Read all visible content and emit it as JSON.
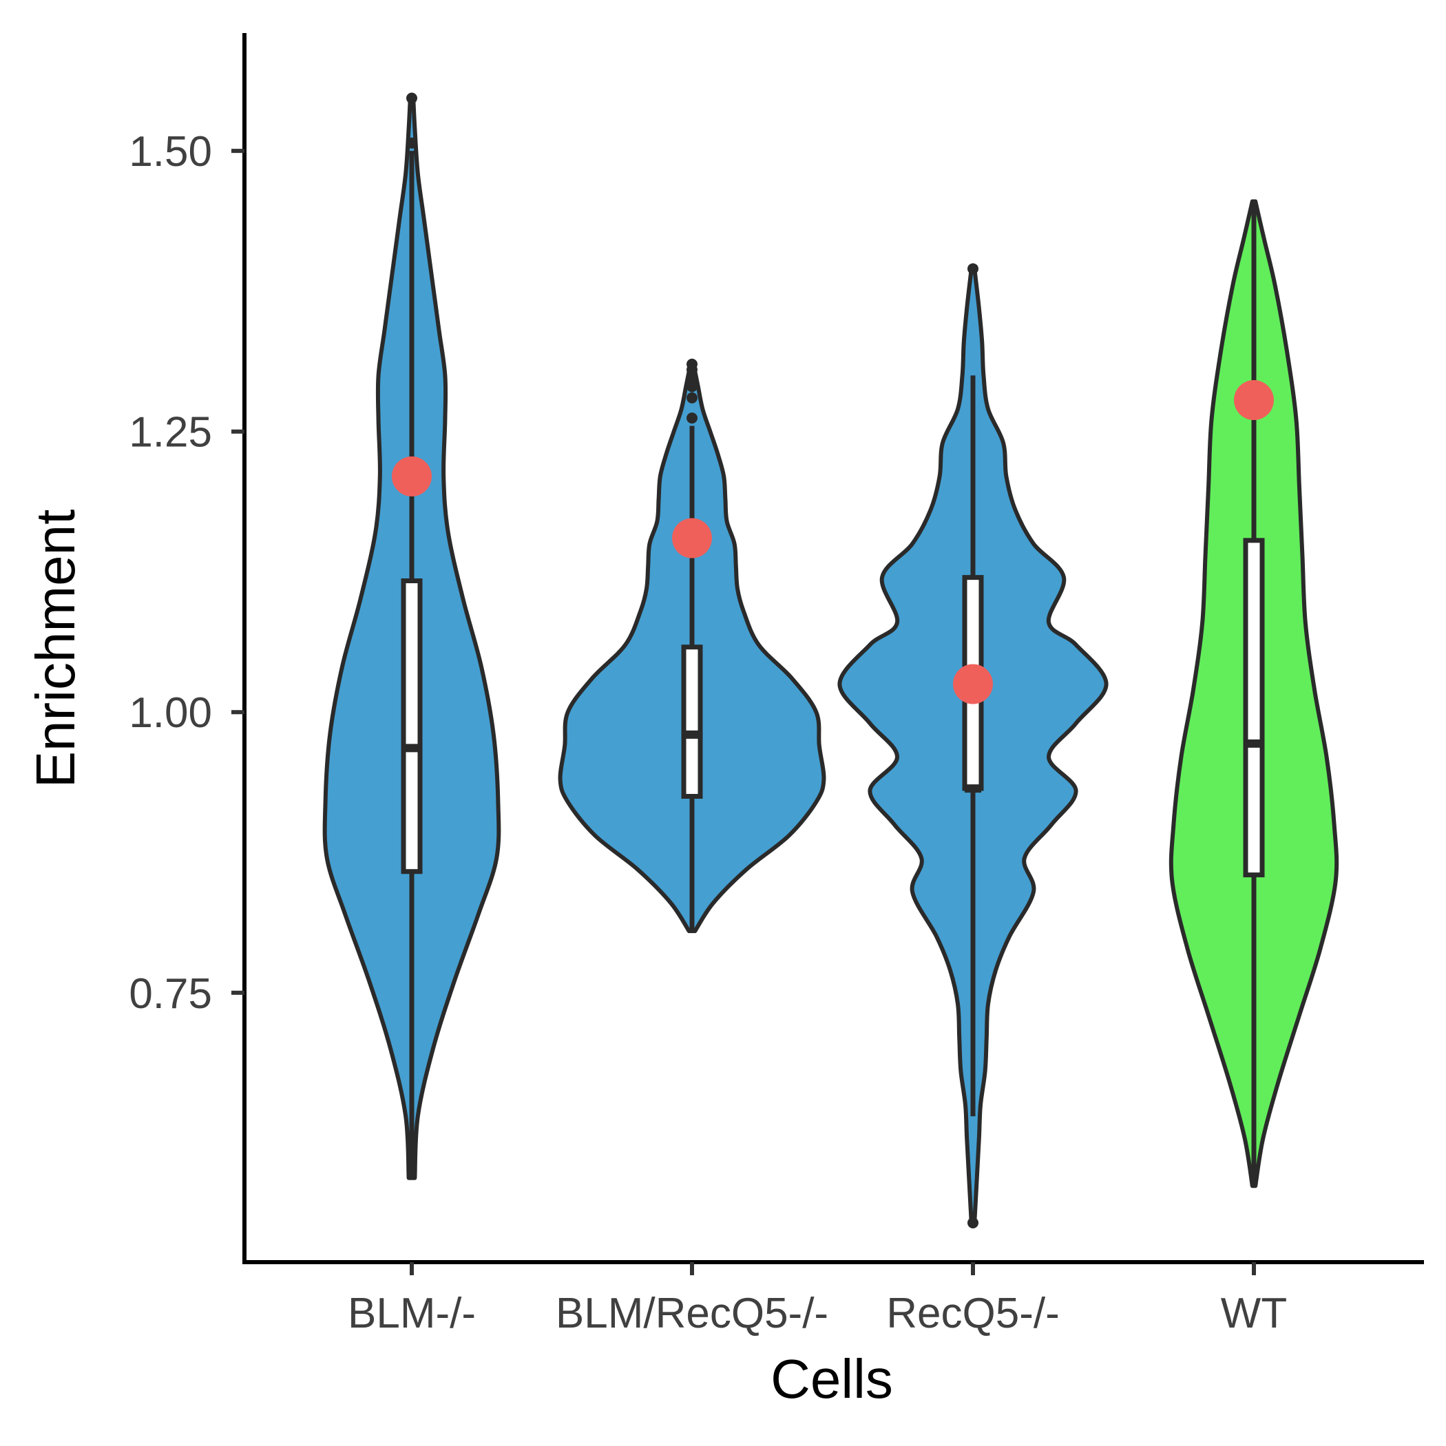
{
  "chart_data": {
    "type": "violin",
    "title": "",
    "xlabel": "Cells",
    "ylabel": "Enrichment",
    "ylim": [
      0.51,
      1.605
    ],
    "yticks": [
      0.75,
      1.0,
      1.25,
      1.5
    ],
    "ytick_labels": [
      "0.75",
      "1.00",
      "1.25",
      "1.50"
    ],
    "categories": [
      "BLM-/-",
      "BLM/RecQ5-/-",
      "RecQ5-/-",
      "WT"
    ],
    "grid": false,
    "legend": "none",
    "colors": {
      "BLM-/-": "#459fd1",
      "BLM/RecQ5-/-": "#459fd1",
      "RecQ5-/-": "#459fd1",
      "WT": "#62ed5b",
      "mean": "#f0605b",
      "outline": "#2a2a2a"
    },
    "groups": [
      {
        "name": "BLM-/-",
        "min": 0.585,
        "max": 1.547,
        "q1": 0.858,
        "median": 0.968,
        "q3": 1.117,
        "whisker_low": 0.585,
        "whisker_high": 1.5,
        "mean": 1.21,
        "outliers": [
          1.507,
          1.547
        ],
        "density": [
          [
            0.585,
            0.01
          ],
          [
            0.64,
            0.02
          ],
          [
            0.7,
            0.07
          ],
          [
            0.76,
            0.14
          ],
          [
            0.82,
            0.22
          ],
          [
            0.87,
            0.28
          ],
          [
            0.92,
            0.285
          ],
          [
            0.98,
            0.27
          ],
          [
            1.04,
            0.23
          ],
          [
            1.1,
            0.17
          ],
          [
            1.16,
            0.12
          ],
          [
            1.21,
            0.105
          ],
          [
            1.26,
            0.11
          ],
          [
            1.3,
            0.11
          ],
          [
            1.34,
            0.09
          ],
          [
            1.39,
            0.065
          ],
          [
            1.44,
            0.04
          ],
          [
            1.48,
            0.02
          ],
          [
            1.52,
            0.01
          ],
          [
            1.547,
            0.005
          ]
        ]
      },
      {
        "name": "BLM/RecQ5-/-",
        "min": 0.805,
        "max": 1.31,
        "q1": 0.925,
        "median": 0.98,
        "q3": 1.058,
        "whisker_low": 0.805,
        "whisker_high": 1.255,
        "mean": 1.155,
        "outliers": [
          1.262,
          1.28,
          1.29,
          1.298,
          1.305,
          1.31
        ],
        "density": [
          [
            0.805,
            0.01
          ],
          [
            0.83,
            0.07
          ],
          [
            0.86,
            0.18
          ],
          [
            0.89,
            0.32
          ],
          [
            0.92,
            0.41
          ],
          [
            0.94,
            0.435
          ],
          [
            0.97,
            0.42
          ],
          [
            1.0,
            0.41
          ],
          [
            1.03,
            0.33
          ],
          [
            1.06,
            0.22
          ],
          [
            1.09,
            0.17
          ],
          [
            1.11,
            0.15
          ],
          [
            1.13,
            0.145
          ],
          [
            1.15,
            0.14
          ],
          [
            1.17,
            0.115
          ],
          [
            1.19,
            0.11
          ],
          [
            1.21,
            0.105
          ],
          [
            1.23,
            0.085
          ],
          [
            1.25,
            0.06
          ],
          [
            1.27,
            0.035
          ],
          [
            1.29,
            0.02
          ],
          [
            1.31,
            0.005
          ]
        ]
      },
      {
        "name": "RecQ5-/-",
        "min": 0.545,
        "max": 1.395,
        "q1": 0.932,
        "median": 0.932,
        "q3": 1.12,
        "whisker_low": 0.64,
        "whisker_high": 1.3,
        "mean": 1.025,
        "outliers": [
          0.545,
          1.395
        ],
        "density": [
          [
            0.545,
            0.005
          ],
          [
            0.58,
            0.012
          ],
          [
            0.62,
            0.02
          ],
          [
            0.65,
            0.025
          ],
          [
            0.68,
            0.04
          ],
          [
            0.71,
            0.045
          ],
          [
            0.74,
            0.05
          ],
          [
            0.77,
            0.075
          ],
          [
            0.8,
            0.12
          ],
          [
            0.84,
            0.2
          ],
          [
            0.87,
            0.17
          ],
          [
            0.9,
            0.26
          ],
          [
            0.93,
            0.34
          ],
          [
            0.96,
            0.25
          ],
          [
            0.99,
            0.34
          ],
          [
            1.025,
            0.44
          ],
          [
            1.06,
            0.34
          ],
          [
            1.08,
            0.25
          ],
          [
            1.12,
            0.3
          ],
          [
            1.15,
            0.2
          ],
          [
            1.18,
            0.14
          ],
          [
            1.21,
            0.11
          ],
          [
            1.24,
            0.1
          ],
          [
            1.27,
            0.05
          ],
          [
            1.3,
            0.035
          ],
          [
            1.33,
            0.03
          ],
          [
            1.36,
            0.02
          ],
          [
            1.395,
            0.005
          ]
        ]
      },
      {
        "name": "WT",
        "min": 0.578,
        "max": 1.455,
        "q1": 0.855,
        "median": 0.972,
        "q3": 1.153,
        "whisker_low": 0.578,
        "whisker_high": 1.455,
        "mean": 1.278,
        "outliers": [],
        "density": [
          [
            0.578,
            0.005
          ],
          [
            0.62,
            0.03
          ],
          [
            0.67,
            0.08
          ],
          [
            0.73,
            0.15
          ],
          [
            0.79,
            0.22
          ],
          [
            0.85,
            0.27
          ],
          [
            0.9,
            0.265
          ],
          [
            0.96,
            0.24
          ],
          [
            1.02,
            0.2
          ],
          [
            1.08,
            0.17
          ],
          [
            1.14,
            0.16
          ],
          [
            1.2,
            0.15
          ],
          [
            1.26,
            0.14
          ],
          [
            1.32,
            0.11
          ],
          [
            1.38,
            0.07
          ],
          [
            1.42,
            0.035
          ],
          [
            1.455,
            0.005
          ]
        ]
      }
    ]
  }
}
